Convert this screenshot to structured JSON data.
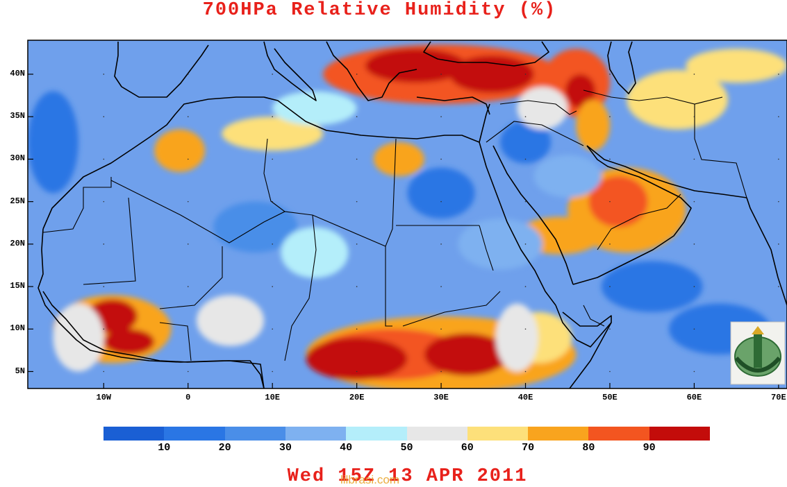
{
  "title": "700HPa Relative Humidity (%)",
  "footer": "Wed 15Z 13 APR 2011",
  "watermark": "lilbrasi.com",
  "map": {
    "lon_range": [
      -19,
      71
    ],
    "lat_range": [
      3,
      44
    ],
    "lat_ticks": [
      {
        "label": "40N",
        "lat": 40
      },
      {
        "label": "35N",
        "lat": 35
      },
      {
        "label": "30N",
        "lat": 30
      },
      {
        "label": "25N",
        "lat": 25
      },
      {
        "label": "20N",
        "lat": 20
      },
      {
        "label": "15N",
        "lat": 15
      },
      {
        "label": "10N",
        "lat": 10
      },
      {
        "label": "5N",
        "lat": 5
      }
    ],
    "lon_ticks": [
      {
        "label": "10W",
        "lon": -10
      },
      {
        "label": "0",
        "lon": 0
      },
      {
        "label": "10E",
        "lon": 10
      },
      {
        "label": "20E",
        "lon": 20
      },
      {
        "label": "30E",
        "lon": 30
      },
      {
        "label": "40E",
        "lon": 40
      },
      {
        "label": "50E",
        "lon": 50
      },
      {
        "label": "60E",
        "lon": 60
      },
      {
        "label": "70E",
        "lon": 70
      }
    ],
    "background_color": "#6fa0ec"
  },
  "colorbar": {
    "colors": [
      "#1a5fd4",
      "#2a76e4",
      "#4a8ee8",
      "#7eb1f0",
      "#b4eefa",
      "#e7e7e7",
      "#fde07a",
      "#f9a41e",
      "#f35520",
      "#c30c0a"
    ],
    "labels": [
      "10",
      "20",
      "30",
      "40",
      "50",
      "60",
      "70",
      "80",
      "90"
    ]
  },
  "field_patches": [
    {
      "lon": 30,
      "lat": 40,
      "rx": 14,
      "ry": 3.5,
      "level": 8
    },
    {
      "lon": 27,
      "lat": 41,
      "rx": 6,
      "ry": 2,
      "level": 9
    },
    {
      "lon": 36,
      "lat": 40,
      "rx": 5,
      "ry": 2.2,
      "level": 9
    },
    {
      "lon": 46,
      "lat": 39,
      "rx": 4,
      "ry": 4,
      "level": 8
    },
    {
      "lon": 46.5,
      "lat": 38,
      "rx": 1.8,
      "ry": 2,
      "level": 9
    },
    {
      "lon": 48,
      "lat": 34,
      "rx": 2,
      "ry": 3,
      "level": 7
    },
    {
      "lon": 58,
      "lat": 37,
      "rx": 6,
      "ry": 3.5,
      "level": 6
    },
    {
      "lon": 65,
      "lat": 41,
      "rx": 6,
      "ry": 2,
      "level": 6
    },
    {
      "lon": 52,
      "lat": 24,
      "rx": 7,
      "ry": 5,
      "level": 7
    },
    {
      "lon": 51,
      "lat": 25,
      "rx": 3.5,
      "ry": 3,
      "level": 8
    },
    {
      "lon": 44,
      "lat": 21,
      "rx": 5,
      "ry": 2.2,
      "level": 7
    },
    {
      "lon": 30,
      "lat": 7,
      "rx": 16,
      "ry": 4.5,
      "level": 7
    },
    {
      "lon": 24,
      "lat": 7,
      "rx": 9,
      "ry": 3,
      "level": 8
    },
    {
      "lon": 33,
      "lat": 7,
      "rx": 5,
      "ry": 2.5,
      "level": 9
    },
    {
      "lon": 20,
      "lat": 6.5,
      "rx": 6,
      "ry": 2.5,
      "level": 9
    },
    {
      "lon": 43,
      "lat": 8.5,
      "rx": 2.5,
      "ry": 1,
      "level": 8
    },
    {
      "lon": -9,
      "lat": 10,
      "rx": 7,
      "ry": 4,
      "level": 7
    },
    {
      "lon": -9,
      "lat": 11.5,
      "rx": 3,
      "ry": 2,
      "level": 9
    },
    {
      "lon": -7,
      "lat": 8.5,
      "rx": 3,
      "ry": 1.5,
      "level": 9
    },
    {
      "lon": -1,
      "lat": 31,
      "rx": 3,
      "ry": 2.5,
      "level": 7
    },
    {
      "lon": 25,
      "lat": 30,
      "rx": 3,
      "ry": 2,
      "level": 7
    },
    {
      "lon": 10,
      "lat": 33,
      "rx": 6,
      "ry": 2,
      "level": 6
    },
    {
      "lon": 41.5,
      "lat": 9,
      "rx": 4,
      "ry": 3,
      "level": 6
    },
    {
      "lon": 39,
      "lat": 9,
      "rx": 2.5,
      "ry": 4,
      "level": 5
    },
    {
      "lon": -13,
      "lat": 9,
      "rx": 3,
      "ry": 4,
      "level": 5
    },
    {
      "lon": 5,
      "lat": 11,
      "rx": 4,
      "ry": 3,
      "level": 5
    },
    {
      "lon": 40,
      "lat": 32,
      "rx": 3,
      "ry": 2.5,
      "level": 1
    },
    {
      "lon": 30,
      "lat": 26,
      "rx": 4,
      "ry": 3,
      "level": 1
    },
    {
      "lon": 55,
      "lat": 15,
      "rx": 6,
      "ry": 3,
      "level": 1
    },
    {
      "lon": 63,
      "lat": 10,
      "rx": 6,
      "ry": 3,
      "level": 1
    },
    {
      "lon": -16,
      "lat": 32,
      "rx": 3,
      "ry": 6,
      "level": 1
    },
    {
      "lon": 8,
      "lat": 22,
      "rx": 5,
      "ry": 3,
      "level": 2
    },
    {
      "lon": 15,
      "lat": 19,
      "rx": 4,
      "ry": 3,
      "level": 4
    },
    {
      "lon": 37,
      "lat": 20,
      "rx": 5,
      "ry": 3,
      "level": 3
    },
    {
      "lon": 45,
      "lat": 28,
      "rx": 4,
      "ry": 2.5,
      "level": 3
    },
    {
      "lon": 15,
      "lat": 36,
      "rx": 5,
      "ry": 2,
      "level": 4
    },
    {
      "lon": 42,
      "lat": 36,
      "rx": 3,
      "ry": 2.5,
      "level": 5
    }
  ],
  "logo_alt": "university-emblem"
}
